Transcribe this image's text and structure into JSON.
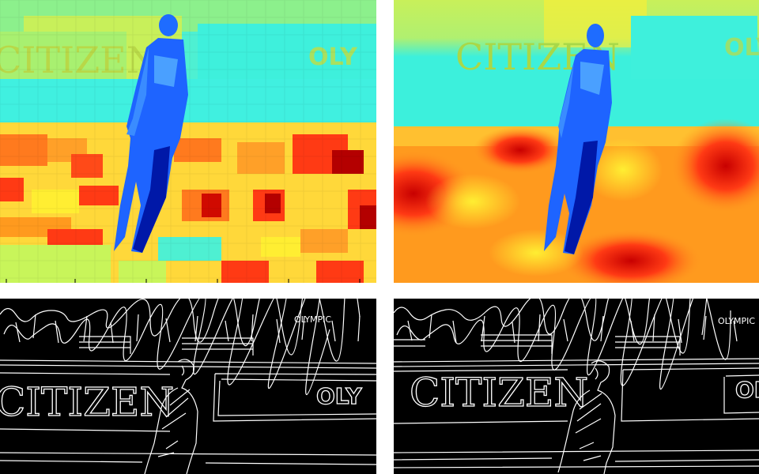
{
  "panels": [
    {
      "id": "heatmap-left",
      "kind": "depth heatmap (fine)"
    },
    {
      "id": "heatmap-right",
      "kind": "depth heatmap (smooth)"
    },
    {
      "id": "edges-left",
      "kind": "edge map"
    },
    {
      "id": "edges-right",
      "kind": "edge map"
    }
  ],
  "banner": {
    "left_text": "CITIZEN",
    "right_text": "OLY",
    "small_text": "OLYMPIC"
  },
  "colors": {
    "colormap": [
      "#00008b",
      "#1e50ff",
      "#3cf0dc",
      "#c8f55a",
      "#ffee32",
      "#ff9a1e",
      "#ff3a14",
      "#b40000"
    ],
    "edge": "#ffffff",
    "background": "#000000",
    "separator": "#ffffff"
  }
}
